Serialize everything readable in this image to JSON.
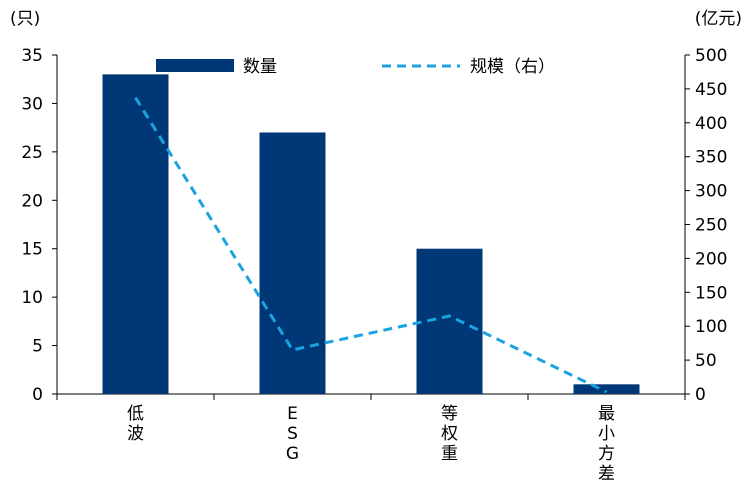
{
  "colors": {
    "bar": "#003776",
    "line": "#1aa3e0",
    "axis": "#000000"
  },
  "chart_data": {
    "type": "bar",
    "categories": [
      "低波",
      "ESG",
      "等权重",
      "最小方差"
    ],
    "category_labels_vertical": [
      [
        "低",
        "波"
      ],
      [
        "E",
        "S",
        "G"
      ],
      [
        "等",
        "权",
        "重"
      ],
      [
        "最",
        "小",
        "方",
        "差"
      ]
    ],
    "series": [
      {
        "name": "数量",
        "type": "bar",
        "axis": "left",
        "values": [
          33,
          27,
          15,
          1
        ]
      },
      {
        "name": "规模（右）",
        "type": "line",
        "style": "dashed",
        "axis": "right",
        "values": [
          437,
          65,
          115,
          3
        ]
      }
    ],
    "y_left": {
      "unit": "(只)",
      "ylim": [
        0,
        35
      ],
      "ticks": [
        "0",
        "5",
        "10",
        "15",
        "20",
        "25",
        "30",
        "35"
      ]
    },
    "y_right": {
      "unit": "(亿元)",
      "ylim": [
        0,
        500
      ],
      "ticks": [
        "0",
        "50",
        "100",
        "150",
        "200",
        "250",
        "300",
        "350",
        "400",
        "450",
        "500"
      ]
    },
    "legend": {
      "position": "top",
      "entries": [
        "数量",
        "规模（右）"
      ]
    },
    "grid": false
  }
}
